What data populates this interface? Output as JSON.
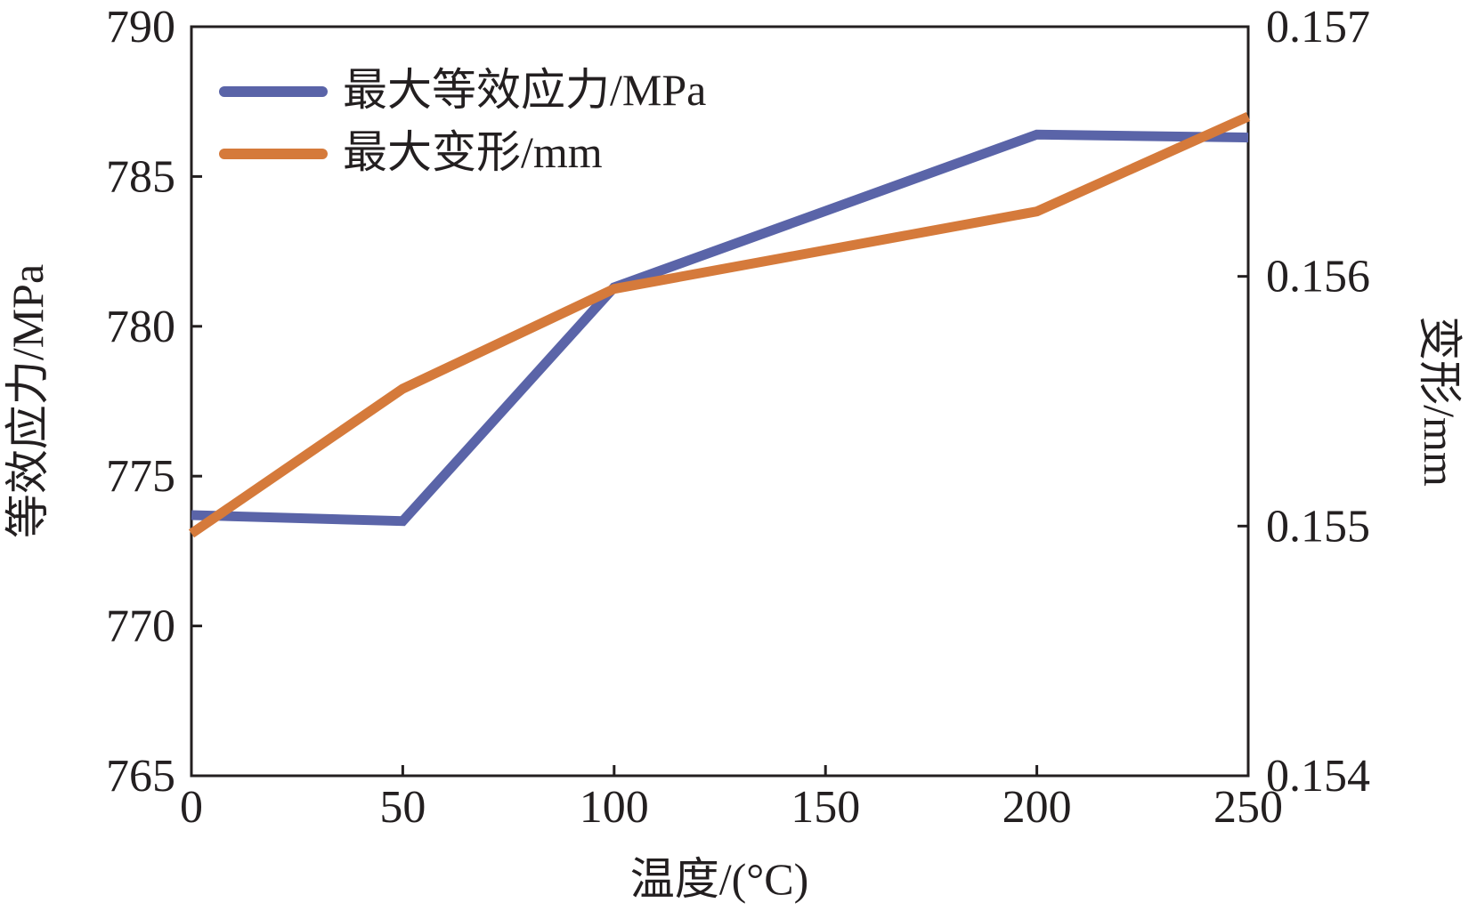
{
  "chart_data": {
    "type": "line",
    "xlabel": "温度/(°C)",
    "ylabel_left": "等效应力/MPa",
    "ylabel_right": "变形/mm",
    "x": [
      0,
      50,
      100,
      200,
      250
    ],
    "xlim": [
      0,
      250
    ],
    "x_ticks": [
      "0",
      "50",
      "100",
      "150",
      "200",
      "250"
    ],
    "x_tick_values": [
      0,
      50,
      100,
      150,
      200,
      250
    ],
    "ylim_left": [
      765,
      790
    ],
    "y_left_ticks": [
      "765",
      "770",
      "775",
      "780",
      "785",
      "790"
    ],
    "y_left_tick_values": [
      765,
      770,
      775,
      780,
      785,
      790
    ],
    "ylim_right": [
      0.154,
      0.157
    ],
    "y_right_ticks": [
      "0.154",
      "0.155",
      "0.156",
      "0.157"
    ],
    "y_right_tick_values": [
      0.154,
      0.155,
      0.156,
      0.157
    ],
    "grid": false,
    "legend_position": "top-left",
    "series": [
      {
        "name": "最大等效应力/MPa",
        "axis": "left",
        "color": "#5a64a8",
        "values": [
          773.7,
          773.5,
          781.3,
          786.4,
          786.3
        ]
      },
      {
        "name": "最大变形/mm",
        "axis": "right",
        "color": "#d57a3b",
        "values": [
          0.15497,
          0.15555,
          0.15595,
          0.15626,
          0.15664
        ]
      }
    ]
  }
}
